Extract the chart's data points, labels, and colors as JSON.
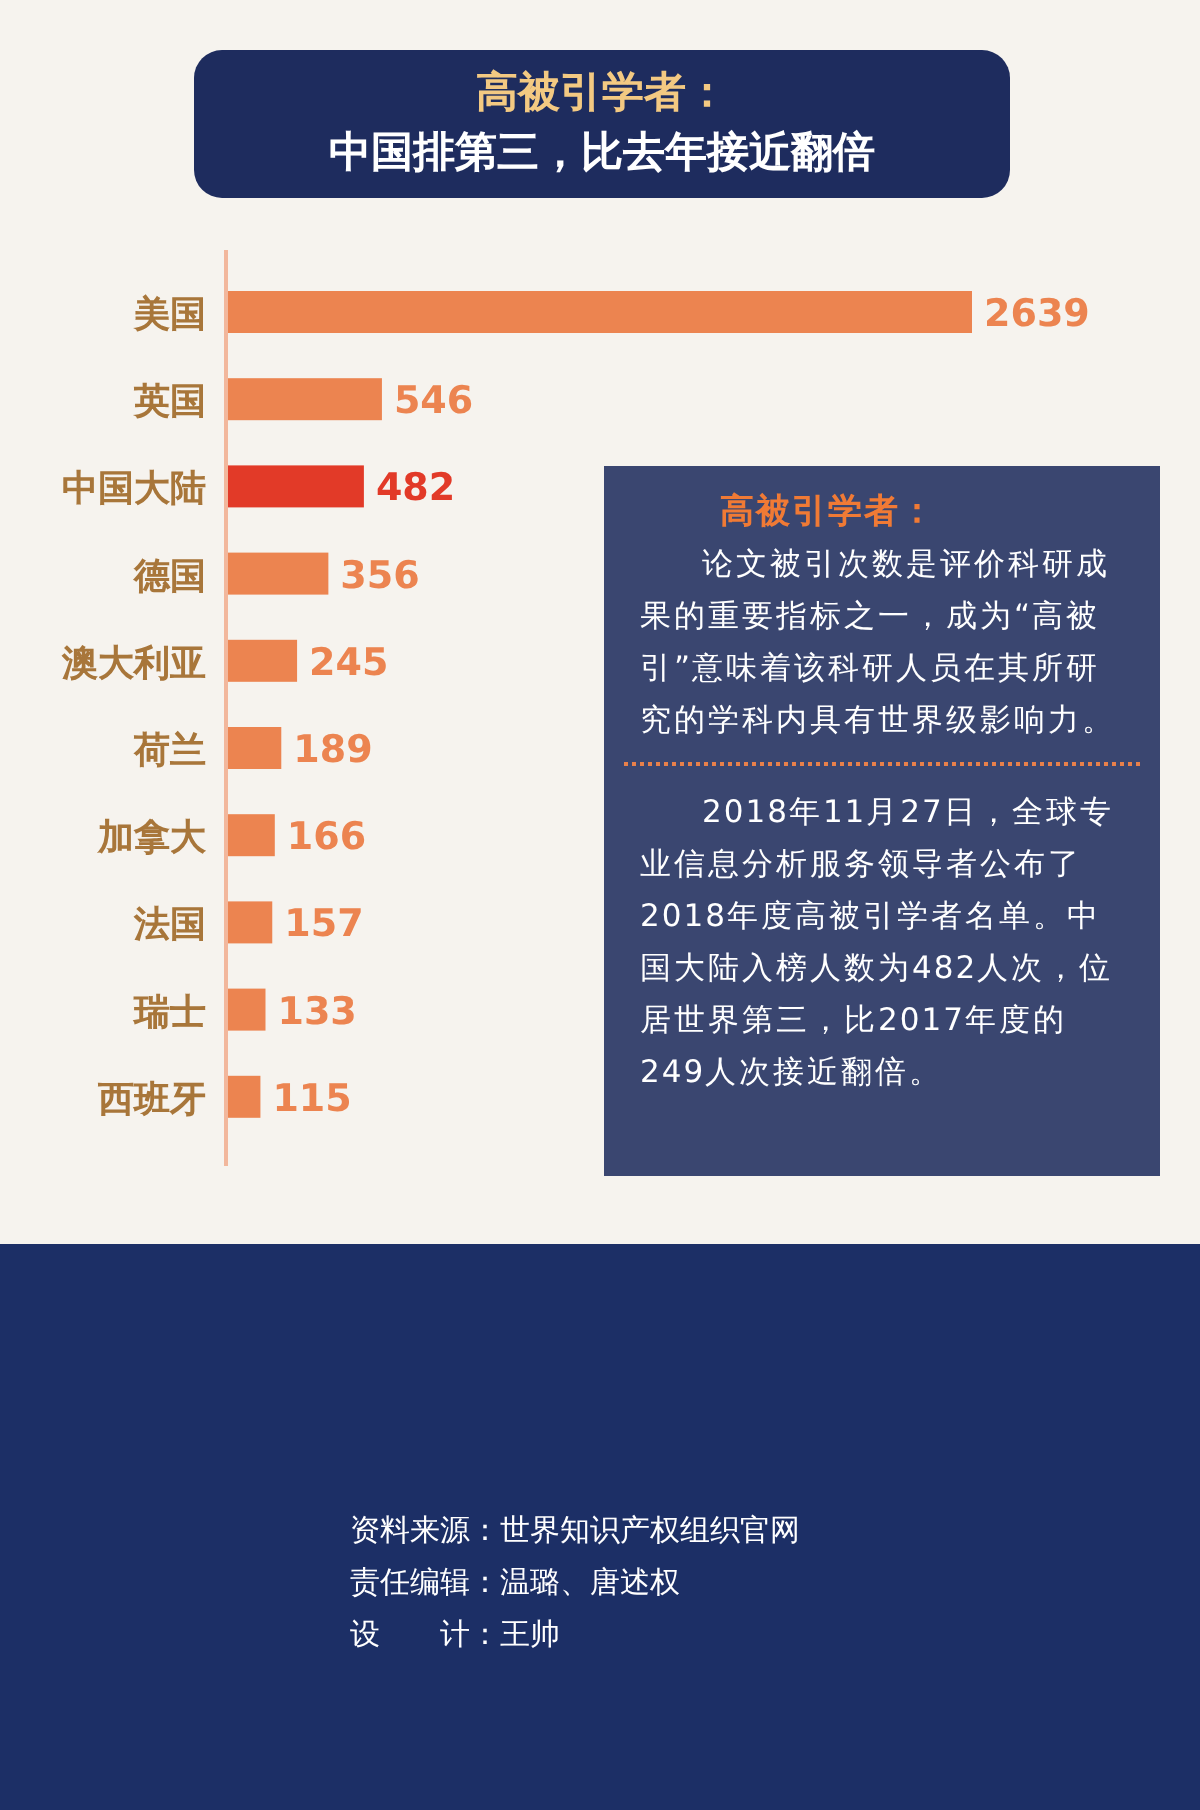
{
  "chart_data": {
    "type": "bar",
    "orientation": "horizontal",
    "title": "高被引学者：",
    "subtitle": "中国排第三，比去年接近翻倍",
    "categories": [
      "美国",
      "英国",
      "中国大陆",
      "德国",
      "澳大利亚",
      "荷兰",
      "加拿大",
      "法国",
      "瑞士",
      "西班牙"
    ],
    "values": [
      2639,
      546,
      482,
      356,
      245,
      189,
      166,
      157,
      133,
      115
    ],
    "colors": [
      "#ec8450",
      "#ec8450",
      "#e23a28",
      "#ec8450",
      "#ec8450",
      "#ec8450",
      "#ec8450",
      "#ec8450",
      "#ec8450",
      "#ec8450"
    ],
    "data_labels": true,
    "annotations": [
      "高被引学者：",
      "论文被引次数是评价科研成果的重要指标之一，成为“高被引”意味着该科研人员在其所研究的学科内具有世界级影响力。",
      "2018年11月27日，全球专业信息分析服务领导者公布了2018年度高被引学者名单。中国大陆入榜人数为482人次，位居世界第三，比2017年度的249人次接近翻倍。",
      "资料来源：世界知识产权组织官网",
      "责任编辑：温璐、唐述权",
      "设　　计：王帅"
    ]
  }
}
